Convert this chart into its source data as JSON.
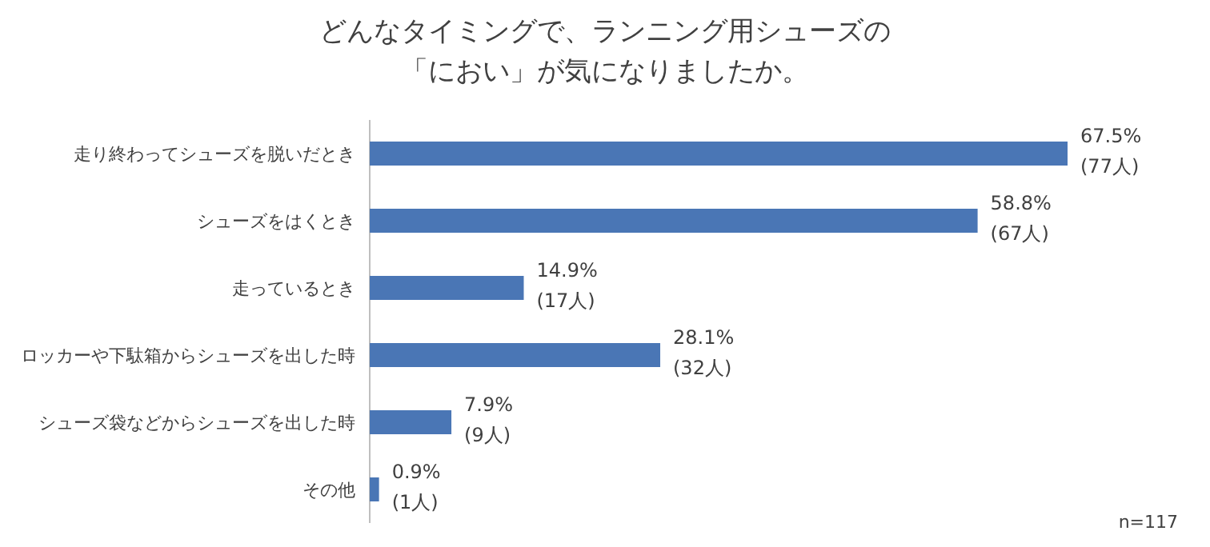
{
  "chart_data": {
    "type": "bar",
    "orientation": "horizontal",
    "title": "どんなタイミングで、ランニング用シューズの「におい」が気になりましたか。",
    "categories": [
      "走り終わってシューズを脱いだとき",
      "シューズをはくとき",
      "走っているとき",
      "ロッカーや下駄箱からシューズを出した時",
      "シューズ袋などからシューズを出した時",
      "その他"
    ],
    "values": [
      67.5,
      58.8,
      14.9,
      28.1,
      7.9,
      0.9
    ],
    "value_labels": [
      "67.5%\n(77人)",
      "58.8%\n(67人)",
      "14.9%\n(17人)",
      "28.1%\n(32人)",
      "7.9%\n(9人)",
      "0.9%\n(1人)"
    ],
    "color": "#4a76b5",
    "annotations": [
      "n=117"
    ]
  }
}
